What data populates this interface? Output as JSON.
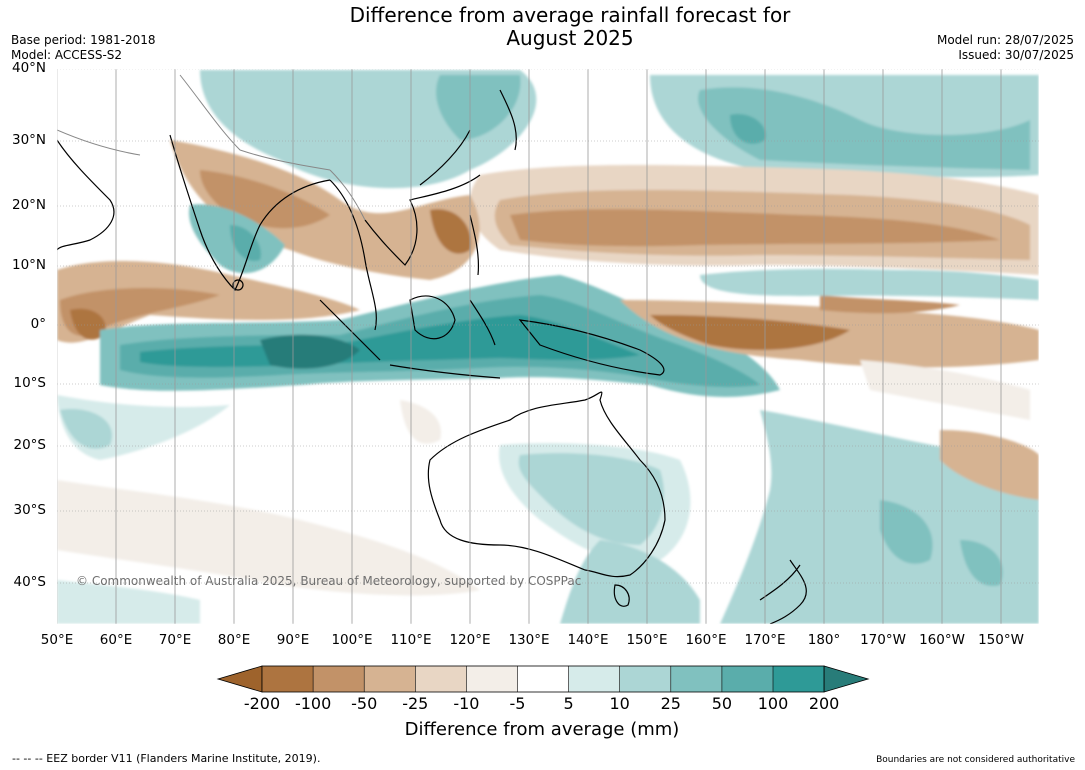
{
  "title_line1": "Difference from average rainfall forecast for",
  "title_line2": "August 2025",
  "meta_left": {
    "base_period": "Base period: 1981-2018",
    "model": "Model: ACCESS-S2"
  },
  "meta_right": {
    "model_run": "Model run: 28/07/2025",
    "issued": "Issued: 30/07/2025"
  },
  "copyright": "© Commonwealth of Australia 2025, Bureau of Meteorology, supported by COSPPac",
  "lat_labels": [
    "40°N",
    "30°N",
    "20°N",
    "10°N",
    "0°",
    "10°S",
    "20°S",
    "30°S",
    "40°S"
  ],
  "lon_labels": [
    "50°E",
    "60°E",
    "70°E",
    "80°E",
    "90°E",
    "100°E",
    "110°E",
    "120°E",
    "130°E",
    "140°E",
    "150°E",
    "160°E",
    "170°E",
    "180°",
    "170°W",
    "160°W",
    "150°W"
  ],
  "colorbar": {
    "tick_labels": [
      "-200",
      "-100",
      "-50",
      "-25",
      "-10",
      "-5",
      "5",
      "10",
      "25",
      "50",
      "100",
      "200"
    ],
    "colors": [
      "#9e632c",
      "#ad7440",
      "#c29268",
      "#d6b392",
      "#e8d6c4",
      "#f3eee8",
      "#ffffff",
      "#d6ebea",
      "#acd6d5",
      "#80c1bf",
      "#5aadab",
      "#2e9a97",
      "#287c79"
    ],
    "label": "Difference from average (mm)"
  },
  "footer_left": "--  --  -- EEZ border V11 (Flanders Marine Institute, 2019).",
  "footer_right": "Boundaries are not considered authoritative"
}
